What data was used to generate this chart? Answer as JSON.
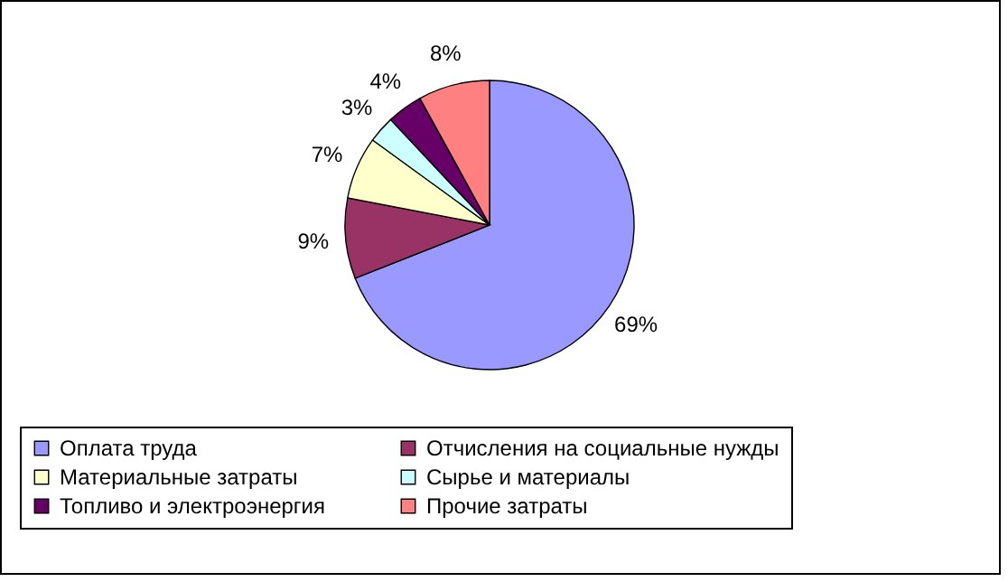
{
  "chart_data": {
    "type": "pie",
    "categories": [
      "Оплата труда",
      "Отчисления на социальные нужды",
      "Материальные затраты",
      "Сырье и материалы",
      "Топливо и электроэнергия",
      "Прочие затраты"
    ],
    "values": [
      69,
      9,
      7,
      3,
      4,
      8
    ],
    "value_labels": [
      "69%",
      "9%",
      "7%",
      "3%",
      "4%",
      "8%"
    ],
    "colors": [
      "#9999ff",
      "#993366",
      "#ffffcc",
      "#ccffff",
      "#660066",
      "#ff8080"
    ],
    "legend": "bottom"
  }
}
